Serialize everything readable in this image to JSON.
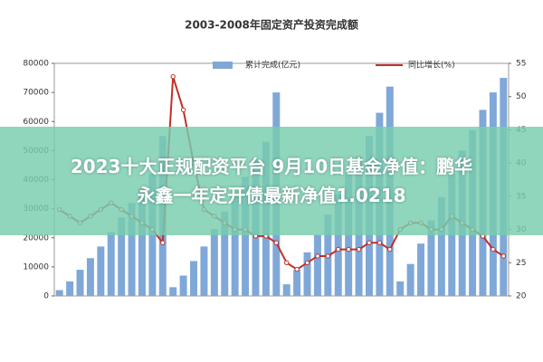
{
  "headline": [
    "2023十大正规配资平台 9月10日基金净值：鹏华",
    "永鑫一年定开债最新净值1.0218"
  ],
  "chart_data": {
    "type": "bar-line",
    "title": "2003-2008年固定资产投资完成额",
    "series": [
      {
        "name": "累计完成(亿元)",
        "color": "#7fa8d8",
        "values": [
          2000,
          5000,
          9000,
          13000,
          17000,
          22000,
          27000,
          32000,
          37000,
          42000,
          55000,
          3000,
          7000,
          12000,
          17000,
          23000,
          29000,
          35000,
          41000,
          47000,
          53000,
          70000,
          4000,
          9000,
          15000,
          21000,
          28000,
          35000,
          42000,
          48000,
          55000,
          63000,
          72000,
          5000,
          11000,
          18000,
          26000,
          34000,
          42000,
          50000,
          57000,
          64000,
          70000,
          75000
        ]
      },
      {
        "name": "同比增长(%)",
        "color": "#c0302a",
        "axis": "y2",
        "values": [
          33,
          32,
          31,
          32,
          33,
          34,
          33,
          32,
          31,
          30,
          28,
          53,
          48,
          40,
          33,
          32,
          31,
          30,
          30,
          29,
          29,
          28,
          25,
          24,
          25,
          26,
          26,
          27,
          27,
          27,
          28,
          28,
          27,
          30,
          31,
          31,
          30,
          30,
          32,
          31,
          30,
          29,
          27,
          26
        ]
      }
    ],
    "ylim": [
      0,
      80000
    ],
    "yticks": [
      0,
      10000,
      20000,
      30000,
      40000,
      50000,
      60000,
      70000,
      80000
    ],
    "y2lim": [
      20,
      55
    ],
    "y2ticks": [
      20,
      25,
      30,
      35,
      40,
      45,
      50,
      55
    ]
  }
}
